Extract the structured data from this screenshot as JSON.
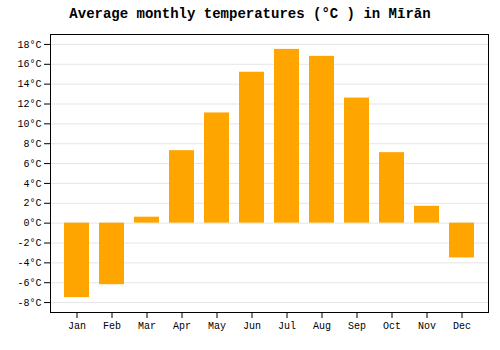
{
  "chart_data": {
    "type": "bar",
    "title": "Average monthly temperatures (°C ) in Mīrān",
    "categories": [
      "Jan",
      "Feb",
      "Mar",
      "Apr",
      "May",
      "Jun",
      "Jul",
      "Aug",
      "Sep",
      "Oct",
      "Nov",
      "Dec"
    ],
    "values": [
      -7.5,
      -6.2,
      0.6,
      7.3,
      11.1,
      15.2,
      17.5,
      16.8,
      12.6,
      7.1,
      1.7,
      -3.5
    ],
    "color": "#FFA500",
    "ylim": [
      -9,
      19
    ],
    "yticks": [
      {
        "value": -8,
        "label": "-8°C"
      },
      {
        "value": -6,
        "label": "-6°C"
      },
      {
        "value": -4,
        "label": "-4°C"
      },
      {
        "value": -2,
        "label": "-2°C"
      },
      {
        "value": 0,
        "label": "0°C"
      },
      {
        "value": 2,
        "label": "2°C"
      },
      {
        "value": 4,
        "label": "4°C"
      },
      {
        "value": 6,
        "label": "6°C"
      },
      {
        "value": 8,
        "label": "8°C"
      },
      {
        "value": 10,
        "label": "10°C"
      },
      {
        "value": 12,
        "label": "12°C"
      },
      {
        "value": 14,
        "label": "14°C"
      },
      {
        "value": 16,
        "label": "16°C"
      },
      {
        "value": 18,
        "label": "18°C"
      }
    ],
    "grid": true
  }
}
